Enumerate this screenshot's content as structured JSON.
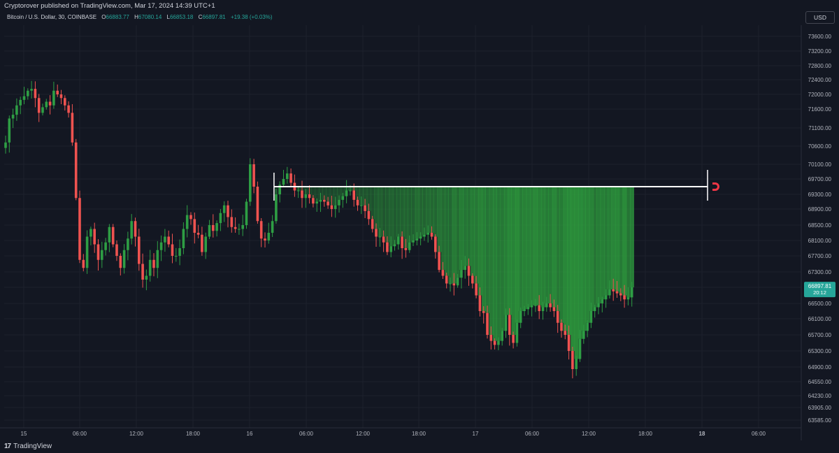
{
  "header": {
    "published": "Cryptorover published on TradingView.com, Mar 17, 2024 14:39 UTC+1"
  },
  "legend": {
    "symbol": "Bitcoin / U.S. Dollar, 30, COINBASE",
    "open_label": "O",
    "open": "66883.77",
    "high_label": "H",
    "high": "67080.14",
    "low_label": "L",
    "low": "66853.18",
    "close_label": "C",
    "close": "66897.81",
    "change": "+19.38 (+0.03%)"
  },
  "price_axis": {
    "currency": "USD",
    "last_price": "66897.81",
    "countdown": "20:12"
  },
  "footer": {
    "brand": "TradingView"
  },
  "colors": {
    "background": "#131722",
    "up": "#26a69a",
    "up_candle": "#2e9e44",
    "down": "#ef5350",
    "fill": "#2e9d3e",
    "line": "#ffffff",
    "grid": "#1d212c",
    "axis_text": "#b2b5be"
  },
  "chart_data": {
    "type": "candlestick",
    "interval": "30",
    "y_ticks": [
      "73600.00",
      "73200.00",
      "72800.00",
      "72400.00",
      "72000.00",
      "71600.00",
      "71100.00",
      "70600.00",
      "70100.00",
      "69700.00",
      "69300.00",
      "68900.00",
      "68500.00",
      "68100.00",
      "67700.00",
      "67300.00",
      "66900.00",
      "66500.00",
      "66100.00",
      "65700.00",
      "65300.00",
      "64900.00",
      "64550.00",
      "64230.00",
      "63905.00",
      "63585.00"
    ],
    "x_ticks": [
      {
        "label": "15",
        "bold": false
      },
      {
        "label": "06:00",
        "bold": false
      },
      {
        "label": "12:00",
        "bold": false
      },
      {
        "label": "18:00",
        "bold": false
      },
      {
        "label": "16",
        "bold": false
      },
      {
        "label": "06:00",
        "bold": false
      },
      {
        "label": "12:00",
        "bold": false
      },
      {
        "label": "18:00",
        "bold": false
      },
      {
        "label": "17",
        "bold": false
      },
      {
        "label": "06:00",
        "bold": false
      },
      {
        "label": "12:00",
        "bold": false
      },
      {
        "label": "18:00",
        "bold": false
      },
      {
        "label": "18",
        "bold": true
      },
      {
        "label": "06:00",
        "bold": false
      }
    ],
    "ylim": [
      63450,
      73900
    ],
    "level_line": 69500,
    "closes": [
      70700,
      71350,
      71450,
      71700,
      71850,
      71950,
      72100,
      72150,
      71900,
      71500,
      71650,
      71800,
      71700,
      72100,
      72000,
      71900,
      71700,
      71500,
      70700,
      69200,
      67600,
      67400,
      68200,
      68400,
      68000,
      67600,
      67850,
      68050,
      68450,
      68000,
      67700,
      67400,
      67850,
      68150,
      68600,
      68200,
      67500,
      67100,
      67200,
      67600,
      67400,
      67850,
      68050,
      68200,
      68000,
      67700,
      67700,
      67900,
      68400,
      68750,
      68650,
      68300,
      68250,
      67800,
      68200,
      68500,
      68350,
      68550,
      68800,
      69000,
      68700,
      68450,
      68400,
      68400,
      68500,
      69100,
      70100,
      69500,
      68600,
      68150,
      68100,
      68300,
      68600,
      69300,
      69550,
      69700,
      69850,
      69600,
      69400,
      69400,
      69200,
      69300,
      69200,
      69050,
      69100,
      69150,
      69100,
      69000,
      68900,
      69000,
      69150,
      69250,
      69400,
      69400,
      69150,
      69000,
      69000,
      68850,
      68650,
      68400,
      68200,
      68200,
      68050,
      67800,
      67950,
      68000,
      68200,
      67900,
      67850,
      68050,
      68100,
      68150,
      68200,
      68250,
      68300,
      68200,
      67800,
      67350,
      67200,
      67000,
      67000,
      66950,
      67150,
      67350,
      67450,
      67200,
      67000,
      66700,
      66300,
      66250,
      65700,
      65550,
      65450,
      65550,
      65800,
      66200,
      65700,
      65500,
      66000,
      66300,
      66350,
      66400,
      66450,
      66450,
      66300,
      66400,
      66500,
      66400,
      66300,
      66000,
      65800,
      65700,
      65300,
      64850,
      65100,
      65600,
      65800,
      66000,
      66300,
      66400,
      66500,
      66600,
      66700,
      66850,
      66800,
      66750,
      66700,
      66600,
      66650,
      66900
    ]
  }
}
